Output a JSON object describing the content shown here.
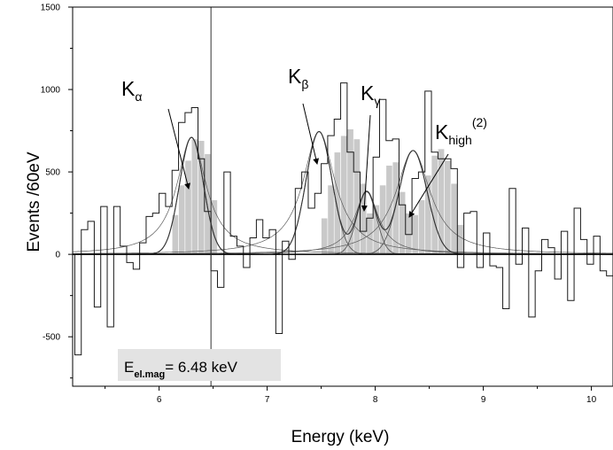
{
  "chart_data": {
    "type": "bar",
    "xlabel": "Energy (keV)",
    "ylabel": "Events /60eV",
    "xlim": [
      5.2,
      10.2
    ],
    "ylim": [
      -800,
      1500
    ],
    "x_ticks": [
      "6",
      "7",
      "8",
      "9",
      "10"
    ],
    "y_ticks": [
      "-500",
      "0",
      "500",
      "1000",
      "1500"
    ],
    "bin_width_keV": 0.06,
    "histogram": {
      "x_start": 5.22,
      "values": [
        -610,
        150,
        200,
        -320,
        290,
        -440,
        290,
        50,
        -50,
        -90,
        70,
        230,
        250,
        370,
        290,
        510,
        800,
        860,
        890,
        580,
        260,
        -100,
        -200,
        500,
        110,
        50,
        -80,
        100,
        210,
        100,
        150,
        -480,
        80,
        -30,
        400,
        500,
        280,
        370,
        550,
        720,
        820,
        1040,
        620,
        500,
        140,
        220,
        590,
        940,
        690,
        700,
        300,
        120,
        460,
        500,
        990,
        620,
        580,
        580,
        520,
        -80,
        250,
        260,
        -80,
        130,
        -70,
        -80,
        -330,
        400,
        -60,
        160,
        -380,
        -100,
        90,
        40,
        -150,
        140,
        -280,
        280,
        90,
        -60,
        110,
        -100,
        -130,
        -440,
        -160,
        -140,
        -40,
        -340,
        180,
        90,
        180,
        60,
        70,
        -250,
        -330,
        420,
        130,
        -10,
        320
      ],
      "shaded_fill": [
        0,
        0,
        0,
        0,
        0,
        0,
        0,
        0,
        0,
        0,
        0,
        0,
        0,
        0,
        0,
        240,
        420,
        570,
        700,
        690,
        610,
        330,
        0,
        0,
        0,
        0,
        0,
        0,
        0,
        0,
        0,
        0,
        0,
        0,
        0,
        0,
        0,
        0,
        220,
        420,
        620,
        720,
        760,
        700,
        430,
        250,
        300,
        420,
        540,
        560,
        380,
        250,
        240,
        330,
        480,
        600,
        640,
        570,
        430,
        180,
        0,
        0,
        0,
        0,
        0,
        0,
        0,
        0,
        0,
        0,
        0,
        0,
        0,
        0,
        0,
        0,
        0,
        0,
        0,
        0,
        0,
        0,
        0,
        0,
        0,
        0,
        0,
        0,
        0,
        0,
        0,
        0,
        0,
        0,
        0,
        0,
        0,
        0,
        0
      ]
    },
    "fit_peaks": [
      {
        "center": 6.3,
        "amplitude": 710,
        "sigma": 0.11,
        "label": "K",
        "sub": "α",
        "sup": ""
      },
      {
        "center": 7.48,
        "amplitude": 745,
        "sigma": 0.12,
        "label": "K",
        "sub": "β",
        "sup": ""
      },
      {
        "center": 7.92,
        "amplitude": 380,
        "sigma": 0.09,
        "label": "K",
        "sub": "γ",
        "sup": ""
      },
      {
        "center": 8.35,
        "amplitude": 630,
        "sigma": 0.13,
        "label": "K",
        "sub": "high",
        "sup": "(2)"
      }
    ],
    "vertical_marker": {
      "x": 6.48,
      "label_main": "E",
      "label_sub": "el.mag",
      "label_value": "= 6.48 keV"
    },
    "grid": false,
    "colors": {
      "line": "#1a1a1a",
      "shade": "#c9c9c9",
      "inset_bg": "#e3e3e3",
      "fit": "#5a5a5a"
    }
  }
}
